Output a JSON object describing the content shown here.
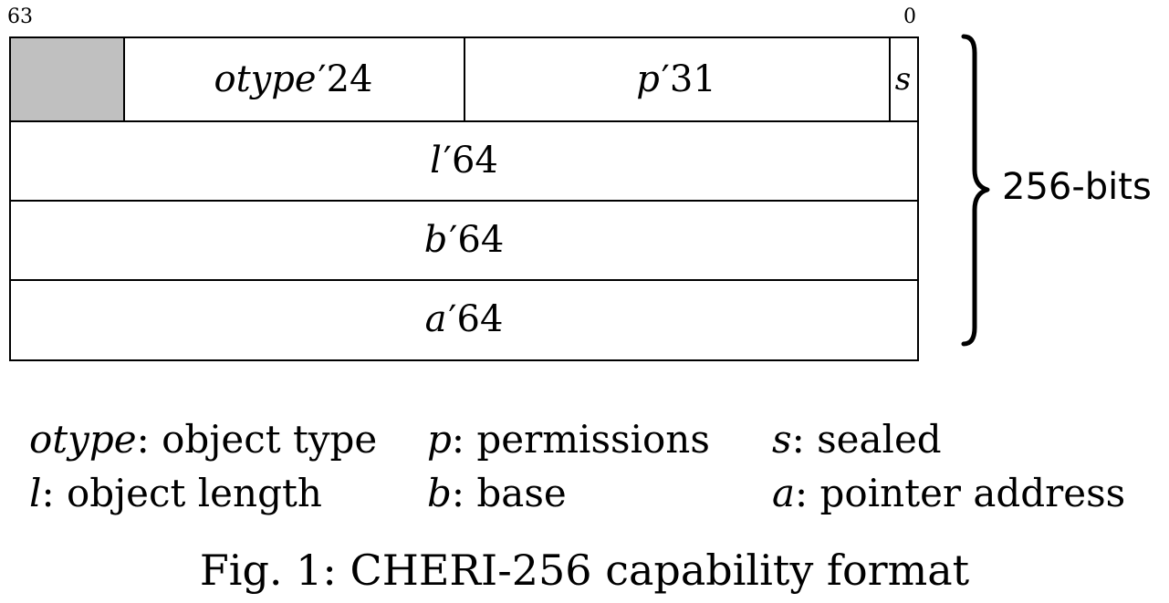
{
  "bit_labels": {
    "high": "63",
    "low": "0"
  },
  "fields": {
    "row1": {
      "otype": {
        "var": "otype",
        "width": "24"
      },
      "perms": {
        "var": "p",
        "width": "31"
      },
      "sealed": {
        "var": "s"
      }
    },
    "length": {
      "var": "l",
      "width": "64"
    },
    "base": {
      "var": "b",
      "width": "64"
    },
    "address": {
      "var": "a",
      "width": "64"
    }
  },
  "prime": "′",
  "total_label": "256-bits",
  "legend": [
    {
      "symbol": "otype",
      "text": ": object type"
    },
    {
      "symbol": "p",
      "text": ": permissions"
    },
    {
      "symbol": "s",
      "text": ": sealed"
    },
    {
      "symbol": "l",
      "text": ": object length"
    },
    {
      "symbol": "b",
      "text": ": base"
    },
    {
      "symbol": "a",
      "text": ": pointer address"
    }
  ],
  "caption": "Fig. 1: CHERI-256 capability format",
  "colors": {
    "reserved_fill": "#c0c0c0",
    "stroke": "#000000"
  }
}
